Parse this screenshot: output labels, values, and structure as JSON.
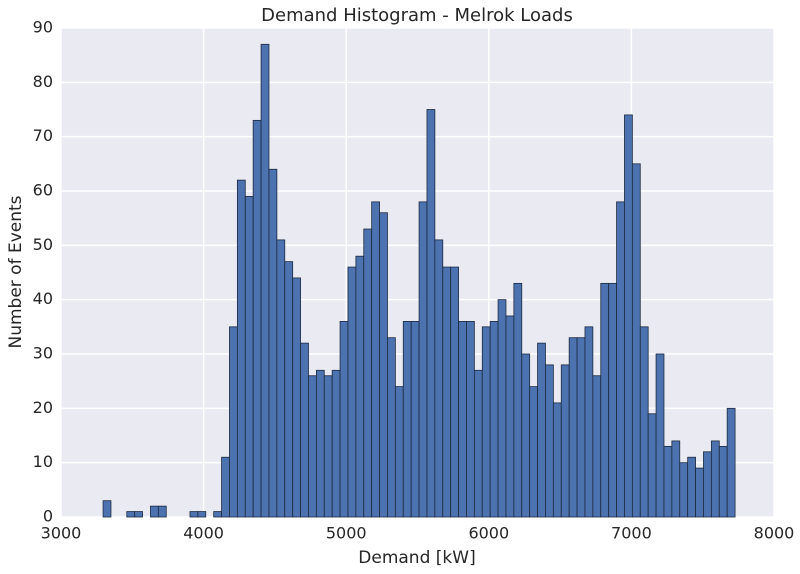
{
  "chart_data": {
    "type": "histogram",
    "title": "Demand Histogram - Melrok Loads",
    "xlabel": "Demand [kW]",
    "ylabel": "Number of Events",
    "bins": [
      3295.0,
      3350.4,
      3405.8,
      3461.2,
      3516.6,
      3572.0,
      3627.4,
      3682.8,
      3738.2,
      3793.6,
      3849.0,
      3904.4,
      3959.8,
      4015.2,
      4070.6,
      4126.0,
      4181.4,
      4236.8,
      4292.2,
      4347.6,
      4403.0,
      4458.4,
      4513.8,
      4569.2,
      4624.6,
      4680.0,
      4735.4,
      4790.8,
      4846.2,
      4901.6,
      4957.0,
      5012.4,
      5067.8,
      5123.2,
      5178.6,
      5234.0,
      5289.4,
      5344.8,
      5400.2,
      5455.6,
      5511.0,
      5566.4,
      5621.8,
      5677.2,
      5732.6,
      5788.0,
      5843.4,
      5898.8,
      5954.2,
      6009.6,
      6065.0,
      6120.4,
      6175.8,
      6231.2,
      6286.6,
      6342.0,
      6397.4,
      6452.8,
      6508.2,
      6563.6,
      6619.0,
      6674.4,
      6729.8,
      6785.2,
      6840.6,
      6896.0,
      6951.4,
      7006.8,
      7062.2,
      7117.6,
      7173.0,
      7228.4,
      7283.8,
      7339.2,
      7394.6,
      7450.0,
      7505.4,
      7560.8,
      7616.2,
      7671.6,
      7727.0
    ],
    "counts": [
      3,
      0,
      0,
      1,
      1,
      0,
      2,
      2,
      0,
      0,
      0,
      1,
      1,
      0,
      1,
      11,
      35,
      62,
      59,
      73,
      87,
      64,
      51,
      47,
      44,
      32,
      26,
      27,
      26,
      27,
      36,
      46,
      48,
      53,
      58,
      56,
      33,
      24,
      36,
      36,
      58,
      75,
      51,
      46,
      46,
      36,
      36,
      27,
      35,
      36,
      40,
      37,
      43,
      30,
      24,
      32,
      28,
      21,
      28,
      33,
      33,
      35,
      26,
      43,
      43,
      58,
      74,
      65,
      35,
      19,
      30,
      13,
      14,
      10,
      11,
      9,
      12,
      14,
      13,
      20
    ],
    "color": "#4c72b0",
    "xlim": [
      3000,
      8000
    ],
    "xticks": [
      3000,
      4000,
      5000,
      6000,
      7000,
      8000
    ],
    "ylim": [
      0,
      90
    ],
    "yticks": [
      0,
      10,
      20,
      30,
      40,
      50,
      60,
      70,
      80,
      90
    ],
    "grid": true
  }
}
